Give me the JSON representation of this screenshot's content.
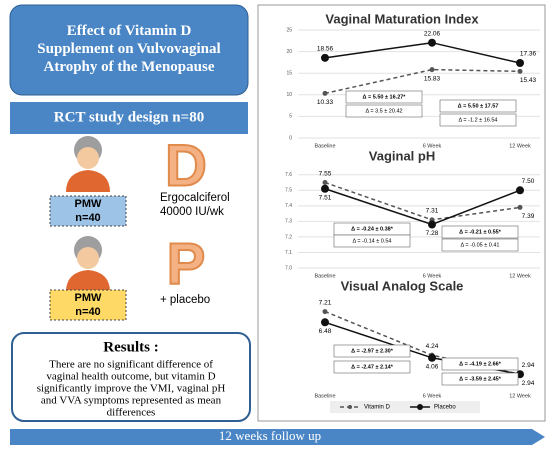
{
  "title": "Effect of Vitamin D Supplement on Vulvovaginal Atrophy of the Menopause",
  "design": "RCT study design n=80",
  "arms": [
    {
      "letter": "D",
      "box": [
        "PMW",
        "n=40"
      ],
      "treatment": [
        "Ergocalciferol",
        "40000 IU/wk"
      ]
    },
    {
      "letter": "P",
      "box": [
        "PMW",
        "n=40"
      ],
      "treatment": [
        "+ placebo"
      ]
    }
  ],
  "results": {
    "heading": "Results :",
    "text": [
      "There are no significant difference of",
      "vaginal health outcome, but vitamin D",
      "significantly improve the VMI, vaginal pH",
      "and VVA symptoms represented as mean",
      "differences"
    ]
  },
  "footer": "12 weeks follow up",
  "chart_data": [
    {
      "type": "line",
      "title": "Vaginal Maturation Index",
      "categories": [
        "Baseline",
        "6 Week",
        "12 Week"
      ],
      "ylim": [
        0,
        25
      ],
      "yticks": [
        0,
        5,
        10,
        15,
        20,
        25
      ],
      "series": [
        {
          "color": "#555555",
          "line_style": "dashed",
          "values": [
            10.33,
            15.83,
            15.43
          ]
        },
        {
          "color": "#111111",
          "line_style": "solid",
          "values": [
            18.56,
            22.06,
            17.36
          ]
        }
      ],
      "annotations": [
        "Δ = 5.50 ± 16.27*",
        "Δ = 3.5 ± 20.42",
        "Δ = 5.50 ± 17.57",
        "Δ = -1.2 ± 16.54"
      ]
    },
    {
      "type": "line",
      "title": "Vaginal pH",
      "categories": [
        "Baseline",
        "6 Week",
        "12 Week"
      ],
      "ylim": [
        7.0,
        7.65
      ],
      "yticks": [
        {
          "value": 7.0,
          "label": "7.0"
        },
        7.1,
        7.2,
        7.3,
        7.4,
        7.5,
        7.6
      ],
      "series": [
        {
          "color": "#555555",
          "line_style": "dashed",
          "values": [
            7.55,
            7.31,
            7.39
          ]
        },
        {
          "color": "#111111",
          "line_style": "solid",
          "values": [
            7.51,
            7.28,
            7.5
          ],
          "value_labels": [
            "7.51",
            "7.28",
            "7.50"
          ]
        }
      ],
      "annotations": [
        "Δ = -0.24 ± 0.38*",
        "Δ = -0.14 ± 0.54",
        "Δ = -0.21 ± 0.55*",
        "Δ = -0.05 ± 0.41"
      ]
    },
    {
      "type": "line",
      "title": "Visual Analog Scale",
      "categories": [
        "Baseline",
        "6 Week",
        "12 Week"
      ],
      "ylim": [
        2,
        8
      ],
      "series": [
        {
          "name": "Vitamin D",
          "color": "#555555",
          "line_style": "dashed",
          "values": [
            7.21,
            4.24,
            2.94
          ]
        },
        {
          "name": "Placebo",
          "color": "#111111",
          "line_style": "solid",
          "values": [
            6.48,
            4.06,
            2.94
          ]
        }
      ],
      "annotations": [
        "Δ = -2.97 ± 2.30*",
        "Δ = -2.47 ± 2.14*",
        "Δ = -4.19 ± 2.66*",
        "Δ = -3.59 ± 2.45*"
      ]
    }
  ]
}
